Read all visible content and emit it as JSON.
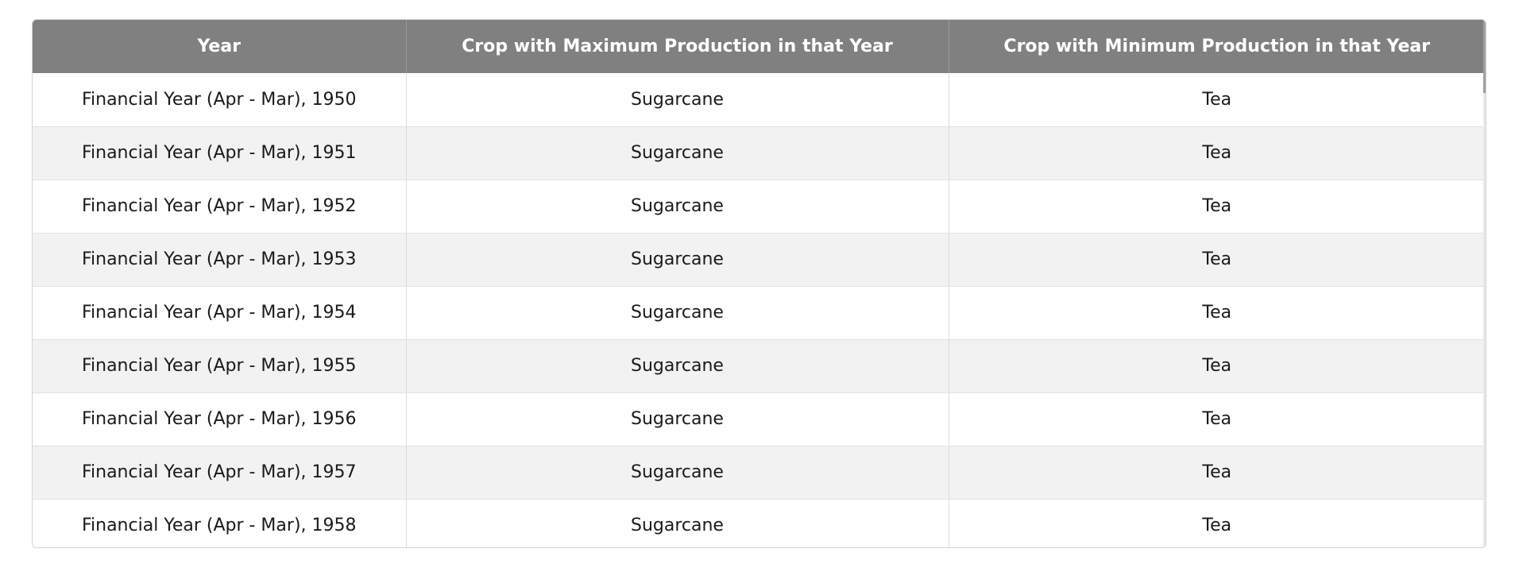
{
  "table": {
    "headers": [
      "Year",
      "Crop with Maximum Production in that Year",
      "Crop with Minimum Production in that Year"
    ],
    "rows": [
      [
        "Financial Year (Apr - Mar), 1950",
        "Sugarcane",
        "Tea"
      ],
      [
        "Financial Year (Apr - Mar), 1951",
        "Sugarcane",
        "Tea"
      ],
      [
        "Financial Year (Apr - Mar), 1952",
        "Sugarcane",
        "Tea"
      ],
      [
        "Financial Year (Apr - Mar), 1953",
        "Sugarcane",
        "Tea"
      ],
      [
        "Financial Year (Apr - Mar), 1954",
        "Sugarcane",
        "Tea"
      ],
      [
        "Financial Year (Apr - Mar), 1955",
        "Sugarcane",
        "Tea"
      ],
      [
        "Financial Year (Apr - Mar), 1956",
        "Sugarcane",
        "Tea"
      ],
      [
        "Financial Year (Apr - Mar), 1957",
        "Sugarcane",
        "Tea"
      ],
      [
        "Financial Year (Apr - Mar), 1958",
        "Sugarcane",
        "Tea"
      ]
    ]
  },
  "colors": {
    "header_background": "#808080",
    "header_text": "#ffffff",
    "row_stripe": "#f2f2f2",
    "row_plain": "#ffffff"
  }
}
